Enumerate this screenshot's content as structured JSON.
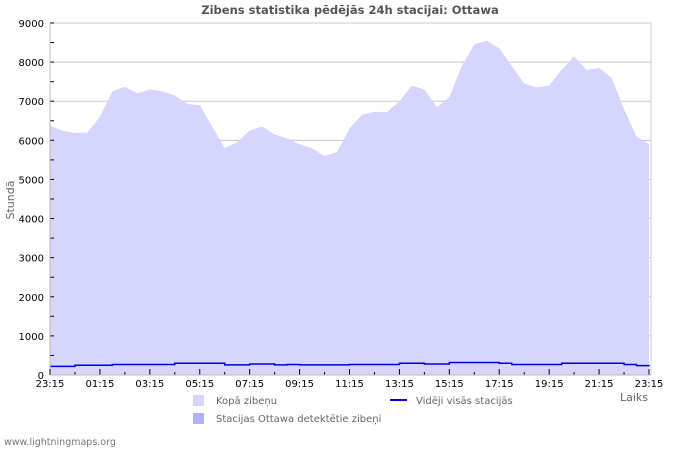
{
  "chart_data": {
    "type": "area",
    "title": "Zibens statistika pēdējās 24h stacijai: Ottawa",
    "xlabel": "Laiks",
    "ylabel": "Stundā",
    "ylim": [
      0,
      9000
    ],
    "yticks": [
      0,
      1000,
      2000,
      3000,
      4000,
      5000,
      6000,
      7000,
      8000,
      9000
    ],
    "xtick_labels": [
      "23:15",
      "01:15",
      "03:15",
      "05:15",
      "07:15",
      "09:15",
      "11:15",
      "13:15",
      "15:15",
      "17:15",
      "19:15",
      "21:15",
      "23:15"
    ],
    "grid": true,
    "legend_position": "bottom",
    "x_step": "30 min",
    "series": [
      {
        "name": "Kopā zibeņu",
        "kind": "area",
        "color": "#d5d5ff",
        "values": [
          6380,
          6250,
          6190,
          6200,
          6600,
          7250,
          7370,
          7200,
          7300,
          7250,
          7150,
          6930,
          6900,
          6350,
          5800,
          5950,
          6250,
          6350,
          6150,
          6050,
          5900,
          5800,
          5600,
          5700,
          6300,
          6650,
          6730,
          6720,
          7000,
          7400,
          7300,
          6850,
          7100,
          7900,
          8450,
          8550,
          8350,
          7900,
          7450,
          7350,
          7400,
          7800,
          8150,
          7800,
          7850,
          7600,
          6800,
          6100,
          5900
        ]
      },
      {
        "name": "Stacijas Ottawa detektētie zibeņi",
        "kind": "area",
        "color": "#b0b0ff",
        "values": [
          0,
          0,
          0,
          0,
          0,
          0,
          0,
          0,
          0,
          0,
          0,
          0,
          0,
          0,
          0,
          0,
          0,
          0,
          0,
          0,
          0,
          0,
          0,
          0,
          0,
          0,
          0,
          0,
          0,
          0,
          0,
          0,
          0,
          0,
          0,
          0,
          0,
          0,
          0,
          0,
          0,
          0,
          0,
          0,
          0,
          0,
          0,
          0,
          0
        ]
      },
      {
        "name": "Vidēji visās stacijās",
        "kind": "line",
        "color": "#0000dd",
        "values": [
          220,
          220,
          250,
          250,
          250,
          270,
          270,
          270,
          270,
          270,
          300,
          300,
          300,
          300,
          260,
          260,
          280,
          280,
          260,
          270,
          260,
          260,
          260,
          260,
          270,
          270,
          270,
          270,
          300,
          300,
          280,
          280,
          320,
          320,
          320,
          320,
          300,
          270,
          270,
          270,
          270,
          300,
          300,
          300,
          300,
          300,
          270,
          240,
          220
        ]
      }
    ]
  },
  "legend": {
    "total": "Kopā zibeņu",
    "station": "Stacijas Ottawa detektētie zibeņi",
    "average": "Vidēji visās stacijās"
  },
  "footer": "www.lightningmaps.org"
}
